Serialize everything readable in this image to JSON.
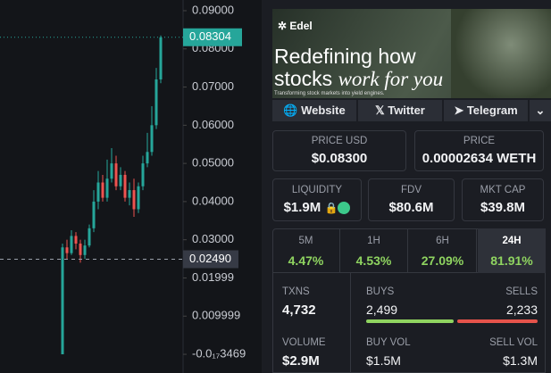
{
  "chart": {
    "ylim": [
      -0.0049,
      0.0928
    ],
    "yticks": [
      {
        "value": 0.09,
        "label": "0.09000"
      },
      {
        "value": 0.08,
        "label": "0.08000"
      },
      {
        "value": 0.07,
        "label": "0.07000"
      },
      {
        "value": 0.06,
        "label": "0.06000"
      },
      {
        "value": 0.05,
        "label": "0.05000"
      },
      {
        "value": 0.04,
        "label": "0.04000"
      },
      {
        "value": 0.03,
        "label": "0.03000"
      },
      {
        "value": 0.02,
        "label": "0.01999"
      },
      {
        "value": 0.01,
        "label": "0.009999"
      },
      {
        "value": 0,
        "label": "-0.0₁₇3469"
      }
    ],
    "last_price": {
      "value": 0.08304,
      "label": "0.08304"
    },
    "crosshair": {
      "value": 0.0249,
      "label": "0.02490"
    },
    "candles": [
      {
        "o": 0.0,
        "h": 0.029,
        "l": 0.0,
        "c": 0.028
      },
      {
        "o": 0.028,
        "h": 0.03,
        "l": 0.025,
        "c": 0.0265
      },
      {
        "o": 0.0265,
        "h": 0.0325,
        "l": 0.026,
        "c": 0.031
      },
      {
        "o": 0.031,
        "h": 0.032,
        "l": 0.0275,
        "c": 0.029
      },
      {
        "o": 0.029,
        "h": 0.03,
        "l": 0.024,
        "c": 0.026
      },
      {
        "o": 0.026,
        "h": 0.03,
        "l": 0.025,
        "c": 0.0285
      },
      {
        "o": 0.0285,
        "h": 0.034,
        "l": 0.028,
        "c": 0.033
      },
      {
        "o": 0.033,
        "h": 0.043,
        "l": 0.032,
        "c": 0.04
      },
      {
        "o": 0.04,
        "h": 0.048,
        "l": 0.038,
        "c": 0.045
      },
      {
        "o": 0.045,
        "h": 0.047,
        "l": 0.04,
        "c": 0.041
      },
      {
        "o": 0.041,
        "h": 0.051,
        "l": 0.04,
        "c": 0.046
      },
      {
        "o": 0.046,
        "h": 0.054,
        "l": 0.045,
        "c": 0.05
      },
      {
        "o": 0.05,
        "h": 0.052,
        "l": 0.043,
        "c": 0.044
      },
      {
        "o": 0.044,
        "h": 0.049,
        "l": 0.043,
        "c": 0.047
      },
      {
        "o": 0.047,
        "h": 0.048,
        "l": 0.04,
        "c": 0.041
      },
      {
        "o": 0.041,
        "h": 0.045,
        "l": 0.039,
        "c": 0.043
      },
      {
        "o": 0.043,
        "h": 0.046,
        "l": 0.036,
        "c": 0.038
      },
      {
        "o": 0.038,
        "h": 0.045,
        "l": 0.037,
        "c": 0.044
      },
      {
        "o": 0.044,
        "h": 0.052,
        "l": 0.043,
        "c": 0.05
      },
      {
        "o": 0.05,
        "h": 0.058,
        "l": 0.049,
        "c": 0.053
      },
      {
        "o": 0.053,
        "h": 0.065,
        "l": 0.052,
        "c": 0.06
      },
      {
        "o": 0.06,
        "h": 0.075,
        "l": 0.059,
        "c": 0.072
      },
      {
        "o": 0.072,
        "h": 0.0835,
        "l": 0.071,
        "c": 0.083
      }
    ]
  },
  "banner": {
    "brand": "Edel",
    "headline_1": "Redefining how",
    "headline_2": "stocks",
    "headline_3": "work for you",
    "tagline": "Transforming stock markets into yield engines."
  },
  "links": [
    "Website",
    "Twitter",
    "Telegram"
  ],
  "price_usd": {
    "label": "PRICE USD",
    "value": "$0.08300"
  },
  "price": {
    "label": "PRICE",
    "value": "0.00002634 WETH"
  },
  "liquidity": {
    "label": "LIQUIDITY",
    "value": "$1.9M"
  },
  "fdv": {
    "label": "FDV",
    "value": "$80.6M"
  },
  "mkt_cap": {
    "label": "MKT CAP",
    "value": "$39.8M"
  },
  "timeframes": [
    {
      "label": "5M",
      "change": "4.47%"
    },
    {
      "label": "1H",
      "change": "4.53%"
    },
    {
      "label": "6H",
      "change": "27.09%"
    },
    {
      "label": "24H",
      "change": "81.91%"
    }
  ],
  "txns": {
    "label": "TXNS",
    "value": "4,732"
  },
  "buys": {
    "label": "BUYS",
    "value": "2,499"
  },
  "sells": {
    "label": "SELLS",
    "value": "2,233"
  },
  "volume": {
    "label": "VOLUME",
    "value": "$2.9M"
  },
  "buy_vol": {
    "label": "BUY VOL",
    "value": "$1.5M"
  },
  "sell_vol": {
    "label": "SELL VOL",
    "value": "$1.3M"
  }
}
